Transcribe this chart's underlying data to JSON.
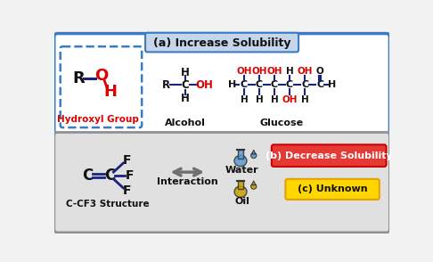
{
  "bg_color": "#f2f2f2",
  "top_panel_border": "#3a7cc4",
  "top_label_bg": "#c5d5ea",
  "top_label_text": "(a) Increase Solubility",
  "bottom_panel_bg": "#e0e0e0",
  "bottom_panel_border": "#909090",
  "hydroxyl_label": "Hydroxyl Group",
  "alcohol_label": "Alcohol",
  "glucose_label": "Glucose",
  "ccf3_label": "C-CF3 Structure",
  "interaction_label": "Interaction",
  "water_label": "Water",
  "oil_label": "Oil",
  "decrease_label": "(b) Decrease Solubility",
  "unknown_label": "(c) Unknown",
  "red": "#dd0000",
  "black": "#111111",
  "bond_color": "#1a237e",
  "decrease_bg": "#e53935",
  "decrease_border": "#cc0000",
  "unknown_bg": "#ffd600",
  "unknown_border": "#e6a000",
  "water_blue": "#5b9bd5",
  "oil_gold": "#c8a000",
  "arrow_color": "#707070"
}
